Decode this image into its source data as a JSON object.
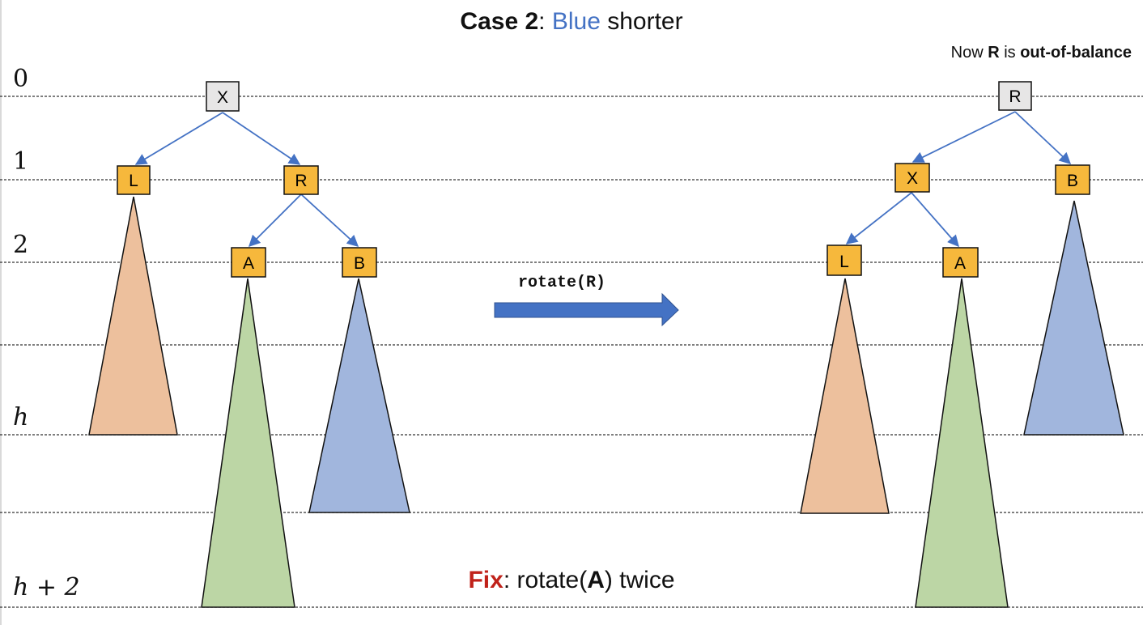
{
  "title": {
    "case": "Case 2",
    "colon": ": ",
    "color_word": "Blue",
    "rest": " shorter"
  },
  "note": {
    "prefix": "Now ",
    "node": "R",
    "middle": " is ",
    "emphasis": "out-of-balance"
  },
  "levels": [
    "0",
    "1",
    "2",
    "h",
    "h + 2"
  ],
  "operation": "rotate(R)",
  "fix": {
    "label": "Fix",
    "text_before": ": rotate(",
    "node": "A",
    "text_after": ") twice"
  },
  "before_tree": {
    "root": "X",
    "nodes": [
      "L",
      "R",
      "A",
      "B"
    ]
  },
  "after_tree": {
    "root": "R",
    "nodes": [
      "X",
      "B",
      "L",
      "A"
    ]
  },
  "colors": {
    "root_fill": "#e7e6e6",
    "node_fill": "#f6b83c",
    "edge": "#4472c4",
    "orange_subtree": "#edc09d",
    "green_subtree": "#bcd6a5",
    "blue_subtree": "#a1b6dd",
    "arrow": "#4472c4",
    "fix_label": "#c0221a",
    "blue_text": "#4472c4"
  }
}
